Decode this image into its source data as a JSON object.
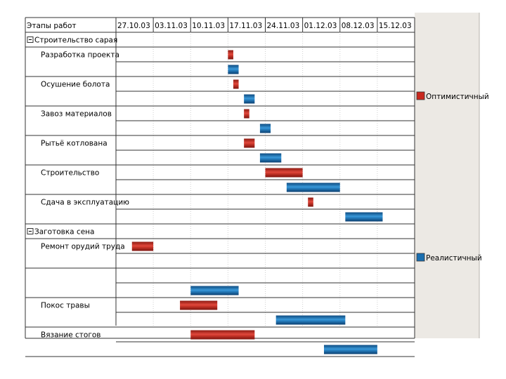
{
  "chart_data": {
    "type": "gantt",
    "header_label": "Этапы работ",
    "x_tick_labels": [
      "27.10.03",
      "03.11.03",
      "10.11.03",
      "17.11.03",
      "24.11.03",
      "01.12.03",
      "08.12.03",
      "15.12.03"
    ],
    "x_range": [
      "2003-10-27",
      "2003-12-22"
    ],
    "groups": [
      {
        "name": "Строительство сарая",
        "tasks": [
          {
            "name": "Разработка проекта",
            "optimistic": [
              "2003-11-17",
              "2003-11-18"
            ],
            "realistic": [
              "2003-11-17",
              "2003-11-19"
            ]
          },
          {
            "name": "Осушение болота",
            "optimistic": [
              "2003-11-18",
              "2003-11-19"
            ],
            "realistic": [
              "2003-11-20",
              "2003-11-22"
            ]
          },
          {
            "name": "Завоз материалов",
            "optimistic": [
              "2003-11-20",
              "2003-11-21"
            ],
            "realistic": [
              "2003-11-23",
              "2003-11-25"
            ]
          },
          {
            "name": "Рытьё котлована",
            "optimistic": [
              "2003-11-20",
              "2003-11-22"
            ],
            "realistic": [
              "2003-11-23",
              "2003-11-27"
            ]
          },
          {
            "name": "Строительство",
            "optimistic": [
              "2003-11-24",
              "2003-12-01"
            ],
            "realistic": [
              "2003-11-28",
              "2003-12-08"
            ]
          },
          {
            "name": "Сдача в эксплуатацию",
            "optimistic": [
              "2003-12-02",
              "2003-12-03"
            ],
            "realistic": [
              "2003-12-09",
              "2003-12-16"
            ]
          }
        ]
      },
      {
        "name": "Заготовка сена",
        "tasks": [
          {
            "name": "Ремонт орудий труда",
            "optimistic": [
              "2003-10-30",
              "2003-11-03"
            ],
            "realistic": null
          },
          {
            "name": "",
            "optimistic": null,
            "realistic": [
              "2003-11-10",
              "2003-11-19"
            ]
          },
          {
            "name": "Покос травы",
            "optimistic": [
              "2003-11-08",
              "2003-11-15"
            ],
            "realistic": [
              "2003-11-26",
              "2003-12-09"
            ]
          },
          {
            "name": "Вязание стогов",
            "optimistic": [
              "2003-11-10",
              "2003-11-22"
            ],
            "realistic": [
              "2003-12-05",
              "2003-12-15"
            ]
          }
        ]
      }
    ],
    "legend": {
      "placement": "right",
      "entries": [
        {
          "name": "Оптимистичный",
          "color": "#c8281e"
        },
        {
          "name": "Реалистичный",
          "color": "#1a6fb0"
        }
      ]
    }
  }
}
